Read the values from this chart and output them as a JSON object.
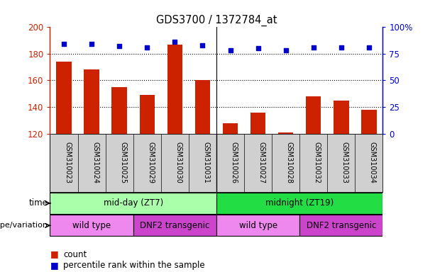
{
  "title": "GDS3700 / 1372784_at",
  "samples": [
    "GSM310023",
    "GSM310024",
    "GSM310025",
    "GSM310029",
    "GSM310030",
    "GSM310031",
    "GSM310026",
    "GSM310027",
    "GSM310028",
    "GSM310032",
    "GSM310033",
    "GSM310034"
  ],
  "counts": [
    174,
    168,
    155,
    149,
    187,
    160,
    128,
    136,
    121,
    148,
    145,
    138
  ],
  "percentile_ranks": [
    84,
    84,
    82,
    81,
    86,
    83,
    78,
    80,
    78,
    81,
    81,
    81
  ],
  "ylim_left": [
    120,
    200
  ],
  "ylim_right": [
    0,
    100
  ],
  "yticks_left": [
    120,
    140,
    160,
    180,
    200
  ],
  "yticks_right": [
    0,
    25,
    50,
    75,
    100
  ],
  "bar_color": "#cc2200",
  "dot_color": "#0000cc",
  "time_groups": [
    {
      "label": "mid-day (ZT7)",
      "start": 0,
      "end": 6,
      "color": "#aaffaa"
    },
    {
      "label": "midnight (ZT19)",
      "start": 6,
      "end": 12,
      "color": "#22dd44"
    }
  ],
  "genotype_groups": [
    {
      "label": "wild type",
      "start": 0,
      "end": 3,
      "color": "#ee88ee"
    },
    {
      "label": "DNF2 transgenic",
      "start": 3,
      "end": 6,
      "color": "#cc44cc"
    },
    {
      "label": "wild type",
      "start": 6,
      "end": 9,
      "color": "#ee88ee"
    },
    {
      "label": "DNF2 transgenic",
      "start": 9,
      "end": 12,
      "color": "#cc44cc"
    }
  ],
  "time_label": "time",
  "genotype_label": "genotype/variation",
  "legend_count_label": "count",
  "legend_percentile_label": "percentile rank within the sample",
  "sample_bg": "#d0d0d0",
  "plot_bg": "#ffffff"
}
